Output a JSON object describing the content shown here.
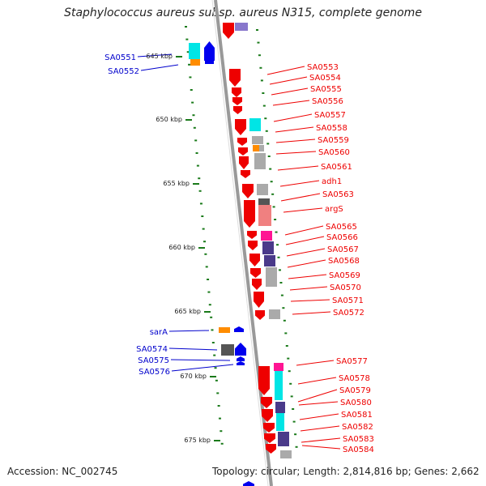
{
  "title": "Staphylococcus aureus subsp. aureus N315, complete genome",
  "accession": "Accession: NC_002745",
  "stats": "Topology: circular; Length: 2,814,816 bp; Genes: 2,662",
  "colors": {
    "forward_gene": "#ee0000",
    "reverse_gene": "#0000ee",
    "cyan": "#00e5e5",
    "orange": "#ff8c00",
    "gray": "#aaaaaa",
    "dark_gray": "#555555",
    "purple": "#4a3a8a",
    "magenta": "#ff1493",
    "pink": "#f08080",
    "ticks": "#1a7a1a",
    "backbone": "#999999"
  },
  "kbp_labels": [
    "645 kbp",
    "650 kbp",
    "655 kbp",
    "660 kbp",
    "665 kbp",
    "670 kbp",
    "675 kbp"
  ],
  "left_genes": [
    "SA0551",
    "SA0552",
    "sarA",
    "SA0574",
    "SA0575",
    "SA0576"
  ],
  "right_genes": [
    "SA0553",
    "SA0554",
    "SA0555",
    "SA0556",
    "SA0557",
    "SA0558",
    "SA0559",
    "SA0560",
    "SA0561",
    "adh1",
    "SA0563",
    "argS",
    "SA0565",
    "SA0566",
    "SA0567",
    "SA0568",
    "SA0569",
    "SA0570",
    "SA0571",
    "SA0572",
    "SA0577",
    "SA0578",
    "SA0579",
    "SA0580",
    "SA0581",
    "SA0582",
    "SA0583",
    "SA0584"
  ]
}
